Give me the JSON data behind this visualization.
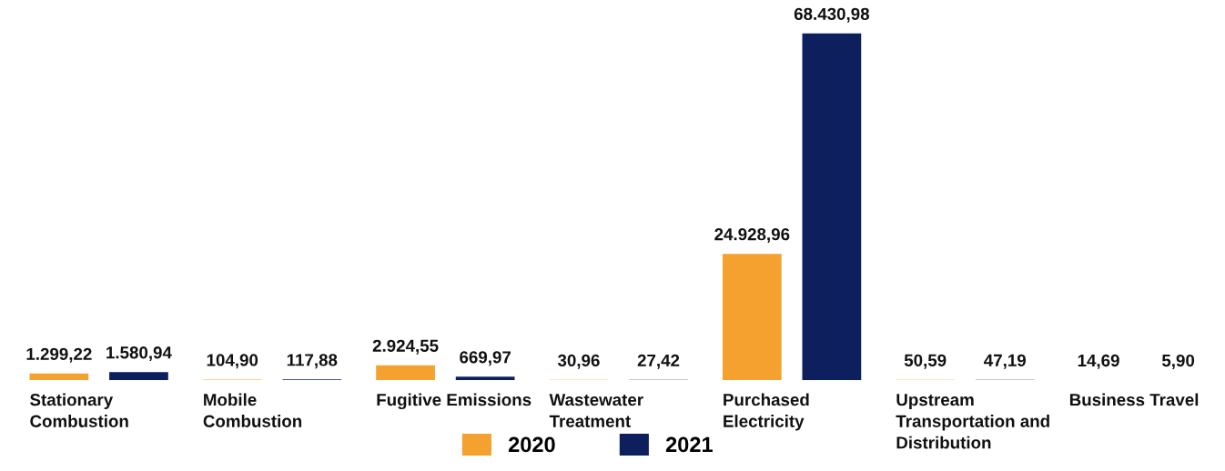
{
  "chart_data": {
    "type": "bar",
    "categories": [
      "Stationary Combustion",
      "Mobile Combustion",
      "Fugitive Emissions",
      "Wastewater Treatment",
      "Purchased Electricity",
      "Upstream Transportation and Distribution",
      "Business Travel"
    ],
    "series": [
      {
        "name": "2020",
        "color": "#f4a12f",
        "values": [
          1299.22,
          104.9,
          2924.55,
          30.96,
          24928.96,
          50.59,
          14.69
        ],
        "value_labels": [
          "1.299,22",
          "104,90",
          "2.924,55",
          "30,96",
          "24.928,96",
          "50,59",
          "14,69"
        ]
      },
      {
        "name": "2021",
        "color": "#0d1f5c",
        "values": [
          1580.94,
          117.88,
          669.97,
          27.42,
          68430.98,
          47.19,
          5.9
        ],
        "value_labels": [
          "1.580,94",
          "117,88",
          "669,97",
          "27,42",
          "68.430,98",
          "47,19",
          "5,90"
        ]
      }
    ],
    "legend": "bottom"
  }
}
